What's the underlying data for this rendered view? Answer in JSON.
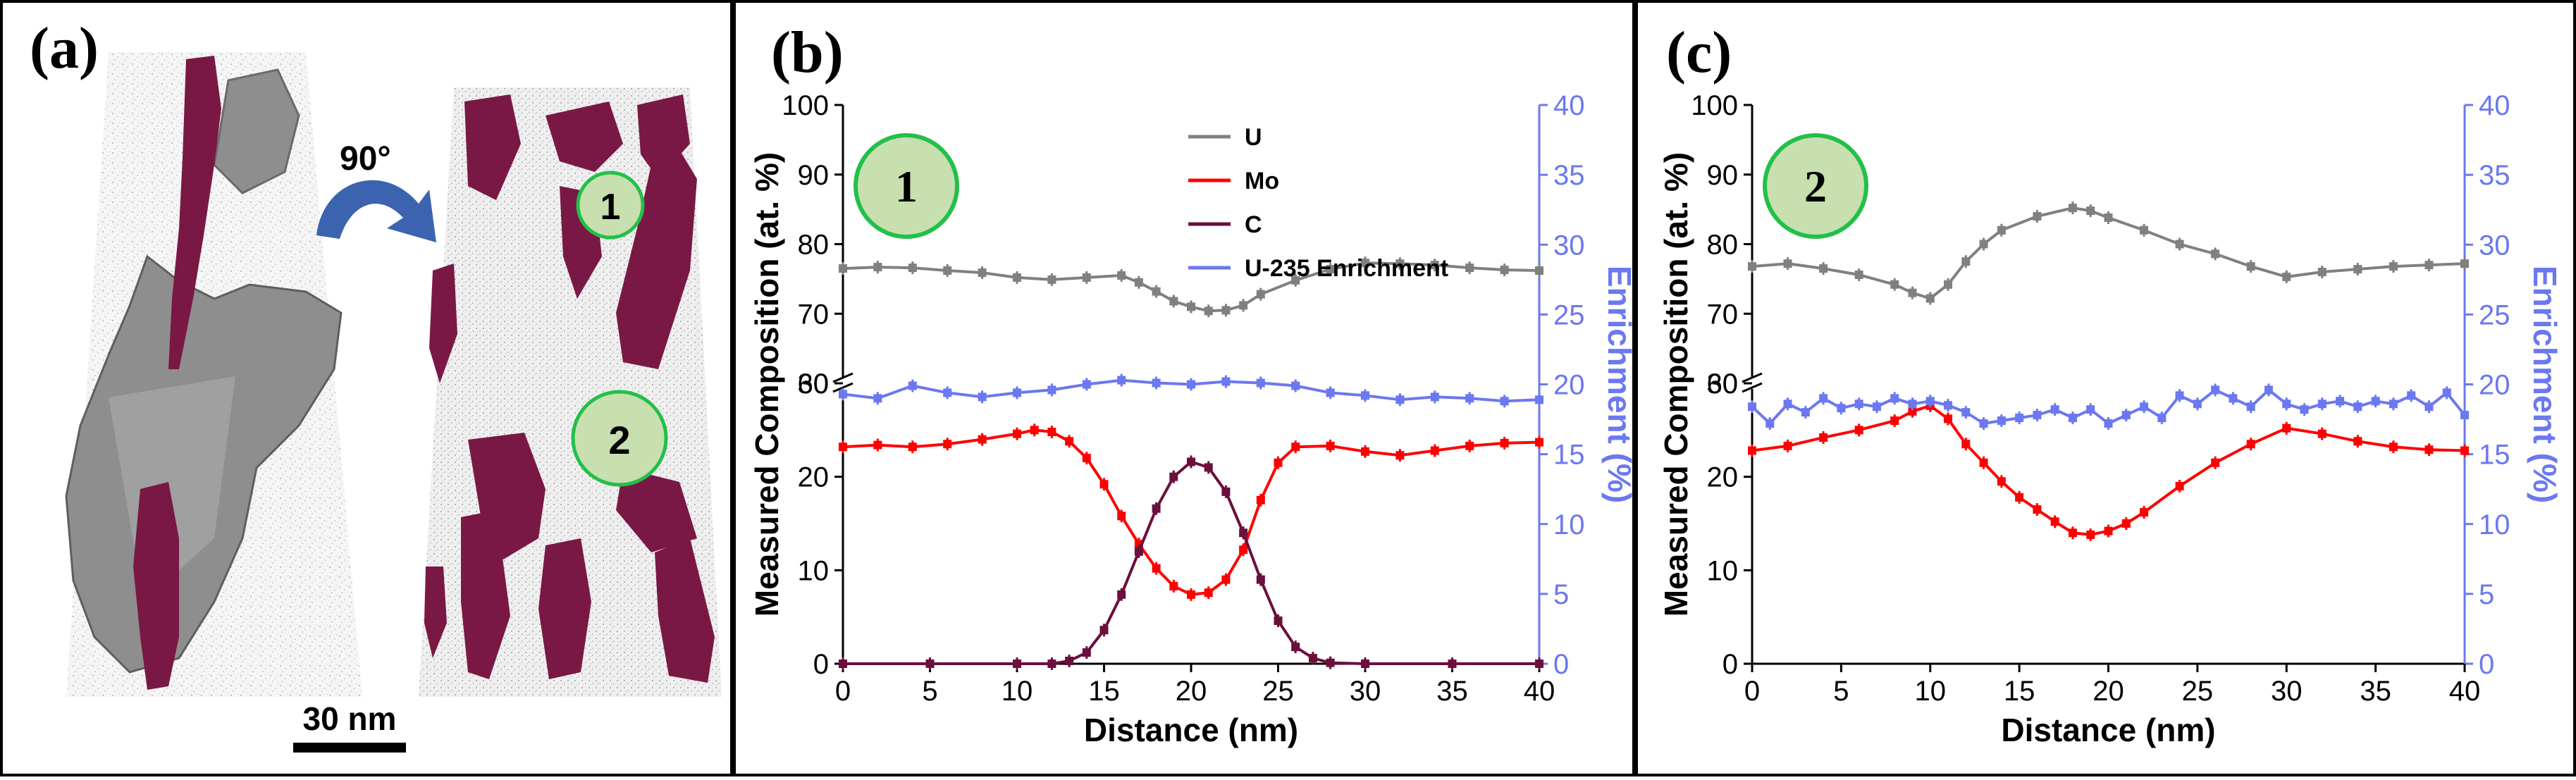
{
  "figure": {
    "panel_a": {
      "label": "(a)",
      "rotation_label": "90°",
      "scalebar_label": "30 nm",
      "region_labels": [
        "1",
        "2"
      ]
    }
  },
  "colors": {
    "U": "#808080",
    "Mo": "#ff0000",
    "C": "#6b0f3d",
    "Enrichment": "#6b78f0",
    "circle_fill": "#c8dfb0",
    "circle_edge": "#22c049",
    "precipitate": "#7a1845",
    "matrix": "#8c8c8c"
  },
  "chart_data": [
    {
      "panel_label": "(b)",
      "region_label": "1",
      "type": "line",
      "xlabel": "Distance (nm)",
      "ylabel": "Measured Composition (at. %)",
      "ylabel_right": "Enrichment (%)",
      "xlim": [
        0,
        40
      ],
      "xticks": [
        0,
        5,
        10,
        15,
        20,
        25,
        30,
        35,
        40
      ],
      "ylim": [
        0,
        100
      ],
      "yticks": [
        0,
        10,
        20,
        30,
        60,
        70,
        80,
        90,
        100
      ],
      "y_axis_break": [
        30,
        60
      ],
      "right_ylim": [
        0,
        40
      ],
      "right_yticks": [
        0,
        5,
        10,
        15,
        20,
        25,
        30,
        35,
        40
      ],
      "legend": [
        "U",
        "Mo",
        "C",
        "U-235 Enrichment"
      ],
      "series": [
        {
          "name": "U",
          "axis": "left",
          "x": [
            0,
            2,
            4,
            6,
            8,
            10,
            12,
            14,
            16,
            17,
            18,
            19,
            20,
            21,
            22,
            23,
            24,
            26,
            28,
            30,
            32,
            34,
            36,
            38,
            40
          ],
          "values": [
            76.5,
            76.7,
            76.6,
            76.2,
            75.9,
            75.2,
            74.9,
            75.2,
            75.5,
            74.5,
            73.2,
            71.8,
            71.0,
            70.4,
            70.5,
            71.2,
            72.8,
            74.8,
            76.4,
            77.3,
            77.2,
            77.0,
            76.6,
            76.3,
            76.2
          ]
        },
        {
          "name": "Mo",
          "axis": "left",
          "x": [
            0,
            2,
            4,
            6,
            8,
            10,
            11,
            12,
            13,
            14,
            15,
            16,
            17,
            18,
            19,
            20,
            21,
            22,
            23,
            24,
            25,
            26,
            28,
            30,
            32,
            34,
            36,
            38,
            40
          ],
          "values": [
            23.2,
            23.4,
            23.2,
            23.5,
            24.0,
            24.6,
            25.0,
            24.8,
            23.8,
            22.0,
            19.2,
            15.8,
            12.8,
            10.2,
            8.3,
            7.4,
            7.6,
            9.0,
            12.2,
            17.5,
            21.5,
            23.2,
            23.3,
            22.7,
            22.3,
            22.8,
            23.3,
            23.6,
            23.7
          ]
        },
        {
          "name": "C",
          "axis": "left",
          "x": [
            0,
            5,
            10,
            12,
            13,
            14,
            15,
            16,
            17,
            18,
            19,
            20,
            21,
            22,
            23,
            24,
            25,
            26,
            27,
            28,
            30,
            35,
            40
          ],
          "values": [
            0,
            0,
            0,
            0,
            0.3,
            1.2,
            3.6,
            7.4,
            12.0,
            16.6,
            20.0,
            21.6,
            21.0,
            18.4,
            14.0,
            9.0,
            4.6,
            1.8,
            0.6,
            0.1,
            0,
            0,
            0
          ]
        },
        {
          "name": "U-235 Enrichment",
          "axis": "right",
          "x": [
            0,
            2,
            4,
            6,
            8,
            10,
            12,
            14,
            16,
            18,
            20,
            22,
            24,
            26,
            28,
            30,
            32,
            34,
            36,
            38,
            40
          ],
          "values": [
            19.3,
            19.0,
            19.9,
            19.4,
            19.1,
            19.4,
            19.6,
            20.0,
            20.3,
            20.1,
            20.0,
            20.2,
            20.1,
            19.9,
            19.4,
            19.2,
            18.9,
            19.1,
            19.0,
            18.8,
            18.9
          ]
        }
      ]
    },
    {
      "panel_label": "(c)",
      "region_label": "2",
      "type": "line",
      "xlabel": "Distance (nm)",
      "ylabel": "Measured Composition (at. %)",
      "ylabel_right": "Enrichment (%)",
      "xlim": [
        0,
        40
      ],
      "xticks": [
        0,
        5,
        10,
        15,
        20,
        25,
        30,
        35,
        40
      ],
      "ylim": [
        0,
        100
      ],
      "yticks": [
        0,
        10,
        20,
        30,
        60,
        70,
        80,
        90,
        100
      ],
      "y_axis_break": [
        30,
        60
      ],
      "right_ylim": [
        0,
        40
      ],
      "right_yticks": [
        0,
        5,
        10,
        15,
        20,
        25,
        30,
        35,
        40
      ],
      "legend": [],
      "series": [
        {
          "name": "U",
          "axis": "left",
          "x": [
            0,
            2,
            4,
            6,
            8,
            9,
            10,
            11,
            12,
            13,
            14,
            16,
            18,
            19,
            20,
            22,
            24,
            26,
            28,
            30,
            32,
            34,
            36,
            38,
            40
          ],
          "values": [
            76.8,
            77.2,
            76.5,
            75.6,
            74.2,
            73.0,
            72.2,
            74.2,
            77.5,
            80.0,
            82.0,
            84.0,
            85.2,
            84.8,
            83.8,
            82.0,
            80.0,
            78.6,
            76.8,
            75.3,
            76.0,
            76.4,
            76.8,
            77.0,
            77.2
          ]
        },
        {
          "name": "Mo",
          "axis": "left",
          "x": [
            0,
            2,
            4,
            6,
            8,
            9,
            10,
            11,
            12,
            13,
            14,
            15,
            16,
            17,
            18,
            19,
            20,
            21,
            22,
            24,
            26,
            28,
            30,
            32,
            34,
            36,
            38,
            40
          ],
          "values": [
            22.8,
            23.3,
            24.2,
            25.0,
            26.0,
            27.0,
            27.6,
            26.2,
            23.5,
            21.5,
            19.5,
            17.8,
            16.5,
            15.2,
            14.0,
            13.8,
            14.2,
            15.0,
            16.2,
            19.0,
            21.5,
            23.5,
            25.2,
            24.6,
            23.8,
            23.2,
            22.9,
            22.8
          ]
        },
        {
          "name": "U-235 Enrichment",
          "axis": "right",
          "x": [
            0,
            1,
            2,
            3,
            4,
            5,
            6,
            7,
            8,
            9,
            10,
            11,
            12,
            13,
            14,
            15,
            16,
            17,
            18,
            19,
            20,
            21,
            22,
            23,
            24,
            25,
            26,
            27,
            28,
            29,
            30,
            31,
            32,
            33,
            34,
            35,
            36,
            37,
            38,
            39,
            40
          ],
          "values": [
            18.4,
            17.2,
            18.6,
            18.0,
            19.0,
            18.3,
            18.6,
            18.4,
            19.0,
            18.6,
            18.8,
            18.5,
            18.0,
            17.2,
            17.4,
            17.6,
            17.8,
            18.2,
            17.6,
            18.2,
            17.2,
            17.8,
            18.4,
            17.6,
            19.2,
            18.6,
            19.6,
            19.0,
            18.4,
            19.6,
            18.6,
            18.2,
            18.6,
            18.8,
            18.4,
            18.8,
            18.6,
            19.2,
            18.4,
            19.4,
            17.8
          ]
        }
      ]
    }
  ]
}
